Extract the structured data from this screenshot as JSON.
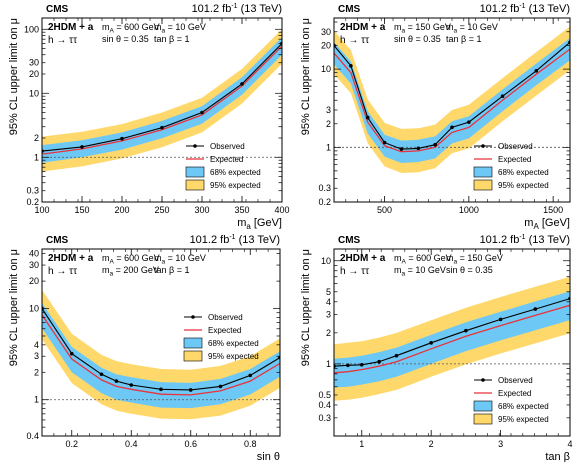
{
  "chart_data": [
    {
      "type": "line",
      "experiment": "CMS",
      "luminosity": "101.2 fb⁻¹ (13 TeV)",
      "model": "2HDM + a",
      "process": "h → ττ",
      "params": [
        "mₐ = 600 GeV",
        "mₐ = 10 GeV",
        "sin θ = 0.35",
        "tan β = 1"
      ],
      "params_display": [
        "m_A = 600 GeV",
        "m_a = 10 GeV",
        "sin θ = 0.35",
        "tan β = 1"
      ],
      "xlabel": "m_a [GeV]",
      "ylabel": "95% CL upper limit on μ",
      "xlim": [
        100,
        400
      ],
      "ylim": [
        0.2,
        150
      ],
      "yscale": "log",
      "xticks": [
        "100",
        "150",
        "200",
        "250",
        "300",
        "350",
        "400"
      ],
      "yticks": [
        "0.2",
        "0.3",
        "1",
        "2",
        "10",
        "20",
        "30",
        "100"
      ],
      "legend_position": "lower-right",
      "legend": [
        "Observed",
        "Expected",
        "68% expected",
        "95% expected"
      ],
      "x": [
        100,
        150,
        200,
        250,
        300,
        350,
        400
      ],
      "observed": [
        1.25,
        1.45,
        1.95,
        2.9,
        5.0,
        14.0,
        60.0
      ],
      "expected": [
        1.12,
        1.35,
        1.8,
        2.7,
        4.6,
        13.0,
        55.0
      ],
      "band68": [
        [
          0.82,
          1.55
        ],
        [
          1.0,
          1.85
        ],
        [
          1.32,
          2.45
        ],
        [
          1.98,
          3.7
        ],
        [
          3.35,
          6.3
        ],
        [
          9.5,
          17.8
        ],
        [
          40.0,
          75.0
        ]
      ],
      "band95": [
        [
          0.6,
          2.1
        ],
        [
          0.72,
          2.5
        ],
        [
          0.96,
          3.3
        ],
        [
          1.43,
          5.0
        ],
        [
          2.45,
          8.5
        ],
        [
          6.9,
          24.0
        ],
        [
          29.0,
          100.0
        ]
      ]
    },
    {
      "type": "line",
      "experiment": "CMS",
      "luminosity": "101.2 fb⁻¹ (13 TeV)",
      "model": "2HDM + a",
      "process": "h → ττ",
      "params": [
        "mₐ = 150 GeV",
        "mₐ = 10 GeV",
        "sin θ = 0.35",
        "tan β = 1"
      ],
      "params_display": [
        "m_a = 150 GeV",
        "m_a = 10 GeV",
        "sin θ = 0.35",
        "tan β = 1"
      ],
      "xlabel": "m_A [GeV]",
      "ylabel": "95% CL upper limit on μ",
      "xlim": [
        200,
        1600
      ],
      "ylim": [
        0.2,
        45
      ],
      "yscale": "log",
      "xticks": [
        "500",
        "1000",
        "1500"
      ],
      "yticks": [
        "0.2",
        "0.3",
        "1",
        "2",
        "3",
        "10",
        "20",
        "30"
      ],
      "legend_position": "lower-right",
      "legend": [
        "Observed",
        "Expected",
        "68% expected",
        "95% expected"
      ],
      "x": [
        200,
        300,
        400,
        500,
        600,
        700,
        800,
        900,
        1000,
        1200,
        1400,
        1600
      ],
      "observed": [
        20.0,
        11.0,
        2.4,
        1.15,
        0.95,
        0.97,
        1.08,
        1.8,
        2.1,
        4.5,
        9.5,
        22.0
      ],
      "expected": [
        16.0,
        9.0,
        2.1,
        1.05,
        0.88,
        0.9,
        1.0,
        1.55,
        1.8,
        4.0,
        8.6,
        18.0
      ],
      "band68": [
        [
          11.5,
          22.0
        ],
        [
          6.5,
          12.5
        ],
        [
          1.5,
          2.9
        ],
        [
          0.76,
          1.45
        ],
        [
          0.63,
          1.22
        ],
        [
          0.65,
          1.25
        ],
        [
          0.72,
          1.38
        ],
        [
          1.12,
          2.15
        ],
        [
          1.3,
          2.5
        ],
        [
          2.9,
          5.5
        ],
        [
          6.2,
          11.8
        ],
        [
          13.0,
          25.0
        ]
      ],
      "band95": [
        [
          8.6,
          31.0
        ],
        [
          4.9,
          17.5
        ],
        [
          1.13,
          4.1
        ],
        [
          0.57,
          2.05
        ],
        [
          0.47,
          1.72
        ],
        [
          0.48,
          1.75
        ],
        [
          0.54,
          1.95
        ],
        [
          0.84,
          3.0
        ],
        [
          0.97,
          3.5
        ],
        [
          2.15,
          7.7
        ],
        [
          4.6,
          16.5
        ],
        [
          9.7,
          35.0
        ]
      ]
    },
    {
      "type": "line",
      "experiment": "CMS",
      "luminosity": "101.2 fb⁻¹ (13 TeV)",
      "model": "2HDM + a",
      "process": "h → ττ",
      "params": [
        "mₐ = 600 GeV",
        "mₐ = 10 GeV",
        "mₐ = 200 GeV",
        "tan β = 1"
      ],
      "params_display": [
        "m_A = 600 GeV",
        "m_a = 10 GeV",
        "m_a = 200 GeV",
        "tan β = 1"
      ],
      "xlabel": "sin θ",
      "ylabel": "95% CL upper limit on μ",
      "xlim": [
        0.1,
        0.9
      ],
      "ylim": [
        0.4,
        45
      ],
      "yscale": "log",
      "xticks": [
        "0.2",
        "0.4",
        "0.6",
        "0.8"
      ],
      "yticks": [
        "0.4",
        "1",
        "2",
        "3",
        "4",
        "10",
        "20",
        "30",
        "40"
      ],
      "legend_position": "upper-right",
      "legend": [
        "Observed",
        "Expected",
        "68% expected",
        "95% expected"
      ],
      "x": [
        0.1,
        0.2,
        0.3,
        0.35,
        0.4,
        0.5,
        0.6,
        0.7,
        0.8,
        0.9
      ],
      "observed": [
        10.0,
        3.2,
        1.9,
        1.6,
        1.45,
        1.3,
        1.28,
        1.4,
        1.85,
        2.9
      ],
      "expected": [
        8.5,
        2.8,
        1.65,
        1.4,
        1.3,
        1.15,
        1.13,
        1.25,
        1.6,
        2.5
      ],
      "band68": [
        [
          6.1,
          11.5
        ],
        [
          2.0,
          3.8
        ],
        [
          1.18,
          2.24
        ],
        [
          1.0,
          1.9
        ],
        [
          0.93,
          1.76
        ],
        [
          0.82,
          1.56
        ],
        [
          0.81,
          1.53
        ],
        [
          0.89,
          1.69
        ],
        [
          1.14,
          2.17
        ],
        [
          1.79,
          3.4
        ]
      ],
      "band95": [
        [
          4.6,
          16.0
        ],
        [
          1.52,
          5.3
        ],
        [
          0.89,
          3.1
        ],
        [
          0.76,
          2.65
        ],
        [
          0.7,
          2.45
        ],
        [
          0.62,
          2.17
        ],
        [
          0.61,
          2.13
        ],
        [
          0.67,
          2.35
        ],
        [
          0.86,
          3.0
        ],
        [
          1.35,
          4.7
        ]
      ]
    },
    {
      "type": "line",
      "experiment": "CMS",
      "luminosity": "101.2 fb⁻¹ (13 TeV)",
      "model": "2HDM + a",
      "process": "h → ττ",
      "params": [
        "mₐ = 600 GeV",
        "mₐ = 150 GeV",
        "mₐ = 10 GeV",
        "sin θ = 0.35"
      ],
      "params_display": [
        "m_A = 600 GeV",
        "m_a = 150 GeV",
        "m_a = 10 GeV",
        "sin θ = 0.35"
      ],
      "xlabel": "tan β",
      "ylabel": "95% CL upper limit on μ",
      "xlim": [
        0.6,
        4
      ],
      "ylim": [
        0.2,
        13
      ],
      "yscale": "log",
      "xticks": [
        "1",
        "2",
        "3",
        "4"
      ],
      "yticks": [
        "0.3",
        "0.4",
        "0.5",
        "1",
        "2",
        "3",
        "4",
        "5",
        "10"
      ],
      "legend_position": "lower-right",
      "legend": [
        "Observed",
        "Expected",
        "68% expected",
        "95% expected"
      ],
      "x": [
        0.6,
        0.8,
        1.0,
        1.25,
        1.5,
        2.0,
        2.5,
        3.0,
        3.5,
        4.0
      ],
      "observed": [
        0.95,
        0.97,
        0.98,
        1.05,
        1.2,
        1.6,
        2.1,
        2.7,
        3.4,
        4.3
      ],
      "expected": [
        0.82,
        0.84,
        0.88,
        0.95,
        1.05,
        1.4,
        1.85,
        2.35,
        2.95,
        3.7
      ],
      "band68": [
        [
          0.59,
          1.12
        ],
        [
          0.6,
          1.15
        ],
        [
          0.63,
          1.2
        ],
        [
          0.68,
          1.3
        ],
        [
          0.75,
          1.44
        ],
        [
          1.0,
          1.92
        ],
        [
          1.33,
          2.53
        ],
        [
          1.69,
          3.2
        ],
        [
          2.12,
          4.04
        ],
        [
          2.66,
          5.07
        ]
      ],
      "band95": [
        [
          0.44,
          1.55
        ],
        [
          0.45,
          1.6
        ],
        [
          0.47,
          1.66
        ],
        [
          0.51,
          1.8
        ],
        [
          0.56,
          2.0
        ],
        [
          0.75,
          2.65
        ],
        [
          0.99,
          3.5
        ],
        [
          1.26,
          4.45
        ],
        [
          1.58,
          5.6
        ],
        [
          1.98,
          7.0
        ]
      ]
    }
  ]
}
